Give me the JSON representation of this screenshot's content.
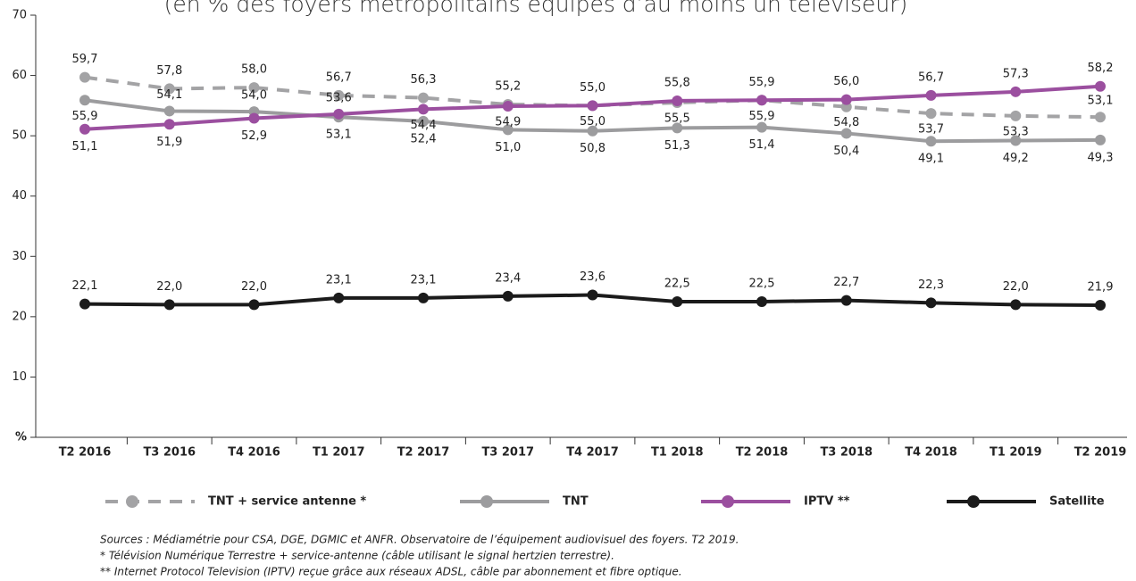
{
  "chart_data": {
    "type": "line",
    "subtitle": "(en % des foyers métropolitains équipés d’au moins un téléviseur)",
    "categories": [
      "T2 2016",
      "T3 2016",
      "T4 2016",
      "T1 2017",
      "T2 2017",
      "T3 2017",
      "T4 2017",
      "T1 2018",
      "T2 2018",
      "T3 2018",
      "T4 2018",
      "T1 2019",
      "T2 2019"
    ],
    "series": [
      {
        "name": "TNT + service antenne *",
        "color": "#a3a3a5",
        "dashed": true,
        "values": [
          59.7,
          57.8,
          58.0,
          56.7,
          56.3,
          55.2,
          55.0,
          55.5,
          55.9,
          54.8,
          53.7,
          53.3,
          53.1
        ],
        "value_labels": [
          "59,7",
          "57,8",
          "58,0",
          "56,7",
          "56,3",
          "55,2",
          "55,0",
          "55,5",
          "55,9",
          "54,8",
          "53,7",
          "53,3",
          "53,1"
        ]
      },
      {
        "name": "TNT",
        "color": "#9c9c9e",
        "dashed": false,
        "values": [
          55.9,
          54.1,
          54.0,
          53.1,
          52.4,
          51.0,
          50.8,
          51.3,
          51.4,
          50.4,
          49.1,
          49.2,
          49.3
        ],
        "value_labels": [
          "55,9",
          "54,1",
          "54,0",
          "53,1",
          "52,4",
          "51,0",
          "50,8",
          "51,3",
          "51,4",
          "50,4",
          "49,1",
          "49,2",
          "49,3"
        ]
      },
      {
        "name": "IPTV **",
        "color": "#9b4f9f",
        "dashed": false,
        "values": [
          51.1,
          51.9,
          52.9,
          53.6,
          54.4,
          54.9,
          55.0,
          55.8,
          55.9,
          56.0,
          56.7,
          57.3,
          58.2
        ],
        "value_labels": [
          "51,1",
          "51,9",
          "52,9",
          "53,6",
          "54,4",
          "54,9",
          "55,0",
          "55,8",
          "55,9",
          "56,0",
          "56,7",
          "57,3",
          "58,2"
        ]
      },
      {
        "name": "Satellite",
        "color": "#1b1b1b",
        "dashed": false,
        "values": [
          22.1,
          22.0,
          22.0,
          23.1,
          23.1,
          23.4,
          23.6,
          22.5,
          22.5,
          22.7,
          22.3,
          22.0,
          21.9
        ],
        "value_labels": [
          "22,1",
          "22,0",
          "22,0",
          "23,1",
          "23,1",
          "23,4",
          "23,6",
          "22,5",
          "22,5",
          "22,7",
          "22,3",
          "22,0",
          "21,9"
        ]
      }
    ],
    "ylim": [
      0,
      70
    ],
    "yticks": [
      {
        "value": 0,
        "label": "%"
      },
      10,
      20,
      30,
      40,
      50,
      60,
      70
    ],
    "notes": [
      "Sources : Médiamétrie pour CSA, DGE, DGMIC et ANFR. Observatoire de l’équipement audiovisuel des foyers. T2 2019.",
      "* Télévision Numérique Terrestre + service-antenne (câble utilisant le signal hertzien terrestre).",
      "** Internet Protocol Television (IPTV) reçue grâce aux réseaux ADSL, câble par abonnement et fibre optique."
    ]
  }
}
